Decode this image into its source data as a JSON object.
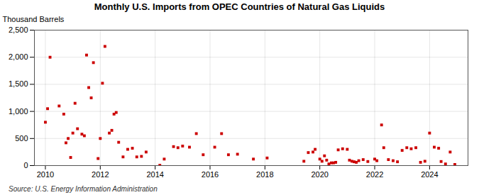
{
  "chart_data": {
    "type": "scatter",
    "title": "Monthly U.S. Imports from OPEC Countries of Natural Gas Liquids",
    "ylabel": "Thousand Barrels",
    "source": "Source: U.S. Energy Information Administration",
    "color": "#cc0000",
    "marker": "square",
    "grid": true,
    "xlim": [
      2009.6,
      2025.4
    ],
    "xticks": [
      2010,
      2012,
      2014,
      2016,
      2018,
      2020,
      2022,
      2024
    ],
    "ylim": [
      0,
      2500
    ],
    "yticks": [
      0,
      500,
      {
        "value": 1000,
        "label": "1,000"
      },
      {
        "value": 1500,
        "label": "1,500"
      },
      {
        "value": 2000,
        "label": "2,000"
      },
      {
        "value": 2500,
        "label": "2,500"
      }
    ],
    "x": [
      2010.0,
      2010.08,
      2010.17,
      2010.5,
      2010.67,
      2010.75,
      2010.83,
      2010.92,
      2011.0,
      2011.08,
      2011.17,
      2011.33,
      2011.42,
      2011.5,
      2011.58,
      2011.67,
      2011.75,
      2011.92,
      2012.0,
      2012.08,
      2012.17,
      2012.33,
      2012.42,
      2012.5,
      2012.58,
      2012.67,
      2012.83,
      2013.0,
      2013.17,
      2013.33,
      2013.5,
      2013.67,
      2014.17,
      2014.33,
      2014.67,
      2014.83,
      2015.0,
      2015.25,
      2015.5,
      2015.75,
      2016.17,
      2016.42,
      2016.67,
      2017.0,
      2017.58,
      2018.08,
      2019.42,
      2019.58,
      2019.75,
      2019.83,
      2020.0,
      2020.08,
      2020.17,
      2020.25,
      2020.33,
      2020.42,
      2020.5,
      2020.58,
      2020.67,
      2020.83,
      2021.0,
      2021.08,
      2021.17,
      2021.25,
      2021.33,
      2021.42,
      2021.58,
      2021.75,
      2022.0,
      2022.08,
      2022.25,
      2022.33,
      2022.5,
      2022.67,
      2022.83,
      2023.0,
      2023.17,
      2023.33,
      2023.5,
      2023.67,
      2023.83,
      2024.0,
      2024.17,
      2024.33,
      2024.42,
      2024.58,
      2024.75,
      2024.92
    ],
    "values": [
      800,
      1050,
      2000,
      1100,
      950,
      420,
      500,
      150,
      600,
      1150,
      680,
      580,
      550,
      2040,
      1440,
      1250,
      1900,
      130,
      500,
      1520,
      2200,
      600,
      650,
      950,
      980,
      430,
      160,
      300,
      320,
      160,
      170,
      250,
      5,
      120,
      350,
      330,
      360,
      340,
      590,
      200,
      340,
      590,
      200,
      210,
      120,
      140,
      80,
      240,
      250,
      300,
      120,
      80,
      180,
      100,
      30,
      50,
      50,
      60,
      290,
      310,
      300,
      100,
      80,
      70,
      60,
      90,
      110,
      75,
      120,
      90,
      750,
      330,
      110,
      90,
      70,
      280,
      330,
      310,
      330,
      60,
      80,
      600,
      340,
      320,
      75,
      30,
      250,
      20
    ]
  }
}
